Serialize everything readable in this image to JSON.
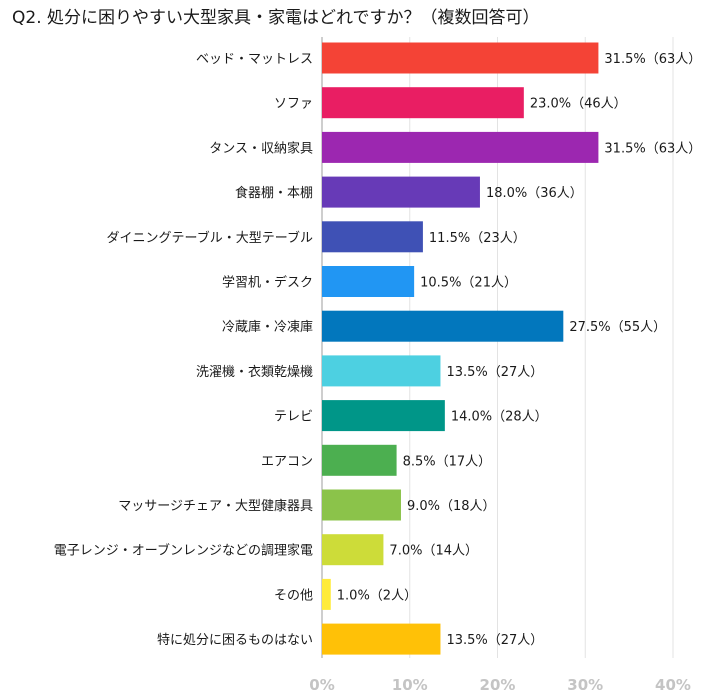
{
  "chart_data": {
    "type": "bar",
    "orientation": "horizontal",
    "title": "Q2. 処分に困りやすい大型家具・家電はどれですか？（複数回答可）",
    "unit": "%",
    "xlim": [
      0,
      40
    ],
    "xticks": [
      "0%",
      "10%",
      "20%",
      "30%",
      "40%"
    ],
    "grid": true,
    "legend": "none",
    "categories": [
      "ベッド・マットレス",
      "ソファ",
      "タンス・収納家具",
      "食器棚・本棚",
      "ダイニングテーブル・大型テーブル",
      "学習机・デスク",
      "冷蔵庫・冷凍庫",
      "洗濯機・衣類乾燥機",
      "テレビ",
      "エアコン",
      "マッサージチェア・大型健康器具",
      "電子レンジ・オーブンレンジなどの調理家電",
      "その他",
      "特に処分に困るものはない"
    ],
    "values": [
      31.5,
      23.0,
      31.5,
      18.0,
      11.5,
      10.5,
      27.5,
      13.5,
      14.0,
      8.5,
      9.0,
      7.0,
      1.0,
      13.5
    ],
    "data_labels": [
      "31.5%（63人）",
      "23.0%（46人）",
      "31.5%（63人）",
      "18.0%（36人）",
      "11.5%（23人）",
      "10.5%（21人）",
      "27.5%（55人）",
      "13.5%（27人）",
      "14.0%（28人）",
      "8.5%（17人）",
      "9.0%（18人）",
      "7.0%（14人）",
      "1.0%（2人）",
      "13.5%（27人）"
    ],
    "colors": [
      "#f44336",
      "#e91e63",
      "#9c27b0",
      "#673ab7",
      "#3f51b5",
      "#2196f3",
      "#0277bd",
      "#4dd0e1",
      "#009688",
      "#4caf50",
      "#8bc34a",
      "#cddc39",
      "#ffeb3b",
      "#ffc107"
    ]
  }
}
